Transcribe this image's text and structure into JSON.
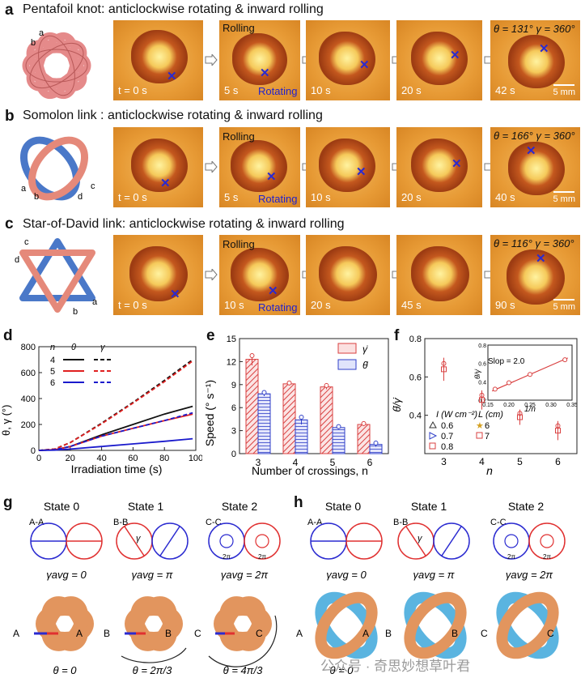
{
  "panel_a": {
    "label": "a",
    "title": "Pentafoil knot: anticlockwise rotating & inward rolling",
    "knot_labels": [
      "a",
      "b"
    ],
    "frames": [
      "t = 0 s",
      "5 s",
      "10 s",
      "20 s",
      "42 s"
    ],
    "rolling": "Rolling",
    "rotating": "Rotating",
    "angles": "θ = 131° γ = 360°",
    "scale": "5 mm"
  },
  "panel_b": {
    "label": "b",
    "title": "Somolon link : anticlockwise rotating & inward rolling",
    "knot_labels": [
      "a",
      "b",
      "c",
      "d"
    ],
    "frames": [
      "t = 0 s",
      "5 s",
      "10 s",
      "20 s",
      "40 s"
    ],
    "rolling": "Rolling",
    "rotating": "Rotating",
    "angles": "θ = 166° γ = 360°",
    "scale": "5 mm"
  },
  "panel_c": {
    "label": "c",
    "title": "Star-of-David link:  anticlockwise rotating & inward rolling",
    "knot_labels": [
      "c",
      "d",
      "b",
      "a"
    ],
    "frames": [
      "t = 0 s",
      "10 s",
      "20 s",
      "45 s",
      "90 s"
    ],
    "rolling": "Rolling",
    "rotating": "Rotating",
    "angles": "θ = 116° γ = 360°",
    "scale": "5 mm"
  },
  "panel_d": {
    "label": "d",
    "ylabel": "θ, γ (°)",
    "xlabel": "Irradiation time (s)",
    "legend_header": [
      "n",
      "θ",
      "γ"
    ],
    "legend_n": [
      "4",
      "5",
      "6"
    ],
    "colors": {
      "n4": "#111111",
      "n5": "#e02020",
      "n6": "#1a1acc"
    }
  },
  "panel_e": {
    "label": "e",
    "ylabel": "Speed (° s⁻¹)",
    "xlabel": "Number of crossings, n",
    "legend": [
      "γ̇",
      "θ̇"
    ]
  },
  "panel_f": {
    "label": "f",
    "ylabel": "θ̇/γ̇",
    "xlabel": "n",
    "inset_ylabel": "θ̇/γ̇",
    "inset_xlabel": "1/n",
    "slope": "Slop = 2.0",
    "legend_I_title": "I (W cm⁻²)",
    "legend_I": [
      "0.6",
      "0.7",
      "0.8"
    ],
    "legend_L_title": "L (cm)",
    "legend_L": [
      "6",
      "7"
    ]
  },
  "panel_g": {
    "label": "g",
    "states": [
      "State 0",
      "State 1",
      "State 2"
    ],
    "sections": [
      "A-A",
      "B-B",
      "C-C"
    ],
    "gammas": [
      "γavg = 0",
      "γavg = π",
      "γavg = 2π"
    ],
    "thetas": [
      "θ = 0",
      "θ = 2π/3",
      "θ = 4π/3"
    ],
    "markers": [
      "A",
      "A",
      "B",
      "B",
      "C",
      "C"
    ],
    "circle_text": [
      "γ",
      "2π",
      "2π"
    ]
  },
  "panel_h": {
    "label": "h",
    "states": [
      "State 0",
      "State 1",
      "State 2"
    ],
    "sections": [
      "A-A",
      "B-B",
      "C-C"
    ],
    "gammas": [
      "γavg = 0",
      "γavg = π",
      "γavg = 2π"
    ],
    "thetas": [
      "θ = 0"
    ],
    "markers": [
      "A",
      "A",
      "B",
      "B",
      "C",
      "C"
    ],
    "circle_text": [
      "γ",
      "2π",
      "2π"
    ]
  },
  "watermark": "公众号 · 奇思妙想草叶君",
  "chart_data": [
    {
      "type": "line",
      "title": "d",
      "xlabel": "Irradiation time (s)",
      "ylabel": "θ, γ (°)",
      "xlim": [
        0,
        100
      ],
      "ylim": [
        0,
        800
      ],
      "xticks": [
        0,
        20,
        40,
        60,
        80,
        100
      ],
      "yticks": [
        0,
        200,
        400,
        600,
        800
      ],
      "series": [
        {
          "name": "n=4 θ",
          "style": "solid",
          "color": "#111111",
          "x": [
            0,
            10,
            20,
            40,
            60,
            80,
            98
          ],
          "y": [
            0,
            5,
            30,
            120,
            200,
            280,
            340
          ]
        },
        {
          "name": "n=5 θ",
          "style": "solid",
          "color": "#e02020",
          "x": [
            0,
            10,
            20,
            40,
            60,
            80,
            98
          ],
          "y": [
            0,
            5,
            30,
            110,
            170,
            230,
            280
          ]
        },
        {
          "name": "n=6 θ",
          "style": "solid",
          "color": "#1a1acc",
          "x": [
            0,
            10,
            20,
            40,
            60,
            80,
            98
          ],
          "y": [
            0,
            2,
            10,
            30,
            50,
            70,
            90
          ]
        },
        {
          "name": "n=4 γ",
          "style": "dashed",
          "color": "#111111",
          "x": [
            0,
            10,
            20,
            40,
            60,
            80,
            98
          ],
          "y": [
            0,
            10,
            60,
            210,
            370,
            540,
            700
          ]
        },
        {
          "name": "n=5 γ",
          "style": "dashed",
          "color": "#e02020",
          "x": [
            0,
            10,
            20,
            40,
            60,
            80,
            98
          ],
          "y": [
            0,
            10,
            60,
            205,
            365,
            530,
            690
          ]
        },
        {
          "name": "n=6 γ",
          "style": "dashed",
          "color": "#1a1acc",
          "x": [
            0,
            10,
            20,
            40,
            60,
            80,
            98
          ],
          "y": [
            0,
            5,
            30,
            110,
            170,
            230,
            290
          ]
        }
      ]
    },
    {
      "type": "bar",
      "title": "e",
      "xlabel": "Number of crossings, n",
      "ylabel": "Speed (° s⁻¹)",
      "ylim": [
        0,
        15
      ],
      "yticks": [
        0,
        3,
        6,
        9,
        12,
        15
      ],
      "categories": [
        "3",
        "4",
        "5",
        "6"
      ],
      "series": [
        {
          "name": "γ̇",
          "color": "#d94040",
          "values": [
            12.3,
            9.1,
            8.7,
            3.8
          ],
          "errors": [
            0.8,
            0.2,
            0.3,
            0.2
          ]
        },
        {
          "name": "θ̇",
          "color": "#3040c8",
          "values": [
            7.8,
            4.4,
            3.4,
            1.2
          ],
          "errors": [
            0.3,
            0.6,
            0.2,
            0.3
          ]
        }
      ]
    },
    {
      "type": "scatter",
      "title": "f",
      "xlabel": "n",
      "ylabel": "θ̇/γ̇",
      "ylim": [
        0.2,
        0.8
      ],
      "yticks": [
        0.4,
        0.6,
        0.8
      ],
      "x": [
        3,
        4,
        5,
        6
      ],
      "values": [
        0.64,
        0.48,
        0.39,
        0.32
      ],
      "errors": [
        0.06,
        0.05,
        0.04,
        0.05
      ],
      "inset": {
        "type": "line",
        "xlabel": "1/n",
        "ylabel": "θ̇/γ̇",
        "xlim": [
          0.15,
          0.35
        ],
        "ylim": [
          0.2,
          0.8
        ],
        "xticks": [
          0.15,
          0.2,
          0.25,
          0.3,
          0.35
        ],
        "yticks": [
          0.2,
          0.4,
          0.6,
          0.8
        ],
        "x": [
          0.167,
          0.2,
          0.25,
          0.333
        ],
        "y": [
          0.32,
          0.39,
          0.48,
          0.64
        ],
        "annotation": "Slop = 2.0"
      }
    }
  ]
}
